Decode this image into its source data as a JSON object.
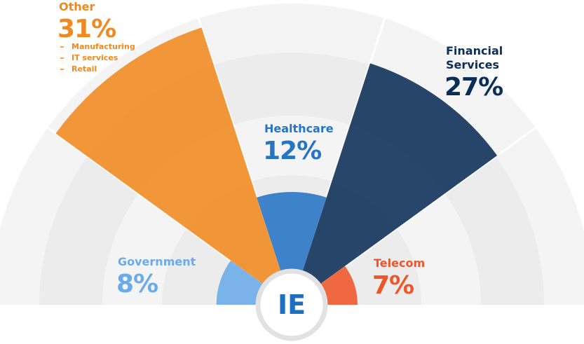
{
  "chart_data": {
    "type": "polar_area",
    "categories": [
      "Government",
      "Other",
      "Healthcare",
      "Financial Services",
      "Telecom"
    ],
    "values": [
      8,
      31,
      12,
      27,
      7
    ],
    "value_labels": [
      "8%",
      "31%",
      "12%",
      "27%",
      "7%"
    ],
    "colors": [
      "#6aabe9",
      "#f0891f",
      "#2674c4",
      "#0b2e57",
      "#f0552a"
    ],
    "rlim": [
      0,
      31
    ],
    "other_items": [
      "Manufacturing",
      "IT services",
      "Retail"
    ],
    "logo": "IE"
  }
}
